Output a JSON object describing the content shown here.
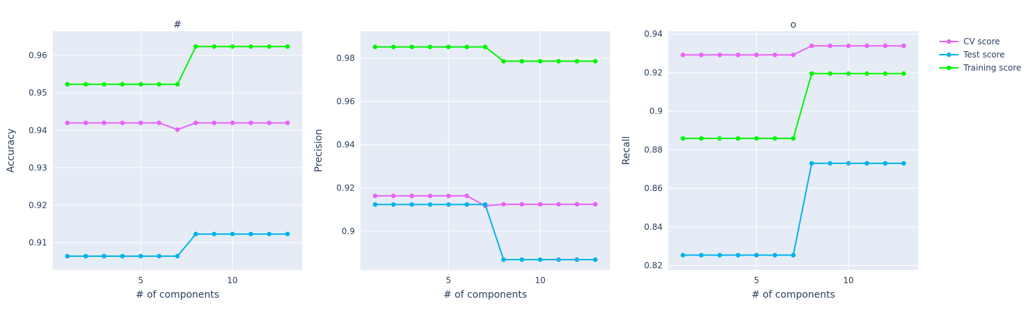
{
  "chart_data": [
    {
      "type": "line",
      "title": "#",
      "xlabel": "# of components",
      "ylabel": "Accuracy",
      "x": [
        1,
        2,
        3,
        4,
        5,
        6,
        7,
        8,
        9,
        10,
        11,
        12,
        13
      ],
      "xlim": [
        0.2,
        13.8
      ],
      "ylim": [
        0.9027,
        0.9665
      ],
      "xticks": [
        5,
        10
      ],
      "yticks": [
        0.91,
        0.92,
        0.93,
        0.94,
        0.95,
        0.96
      ],
      "ytick_labels": [
        "0.91",
        "0.92",
        "0.93",
        "0.94",
        "0.95",
        "0.96"
      ],
      "series": [
        {
          "name": "CV score",
          "values": [
            0.942,
            0.942,
            0.942,
            0.942,
            0.942,
            0.942,
            0.9402,
            0.942,
            0.942,
            0.942,
            0.942,
            0.942,
            0.942
          ]
        },
        {
          "name": "Test score",
          "values": [
            0.9064,
            0.9064,
            0.9064,
            0.9064,
            0.9064,
            0.9064,
            0.9064,
            0.9123,
            0.9123,
            0.9123,
            0.9123,
            0.9123,
            0.9123
          ]
        },
        {
          "name": "Training score",
          "values": [
            0.9523,
            0.9523,
            0.9523,
            0.9523,
            0.9523,
            0.9523,
            0.9523,
            0.9624,
            0.9624,
            0.9624,
            0.9624,
            0.9624,
            0.9624
          ]
        }
      ]
    },
    {
      "type": "line",
      "title": "",
      "xlabel": "# of components",
      "ylabel": "Precision",
      "x": [
        1,
        2,
        3,
        4,
        5,
        6,
        7,
        8,
        9,
        10,
        11,
        12,
        13
      ],
      "xlim": [
        0.2,
        13.8
      ],
      "ylim": [
        0.882,
        0.9925
      ],
      "xticks": [
        5,
        10
      ],
      "yticks": [
        0.9,
        0.92,
        0.94,
        0.96,
        0.98
      ],
      "ytick_labels": [
        "0.9",
        "0.92",
        "0.94",
        "0.96",
        "0.98"
      ],
      "series": [
        {
          "name": "CV score",
          "values": [
            0.9163,
            0.9163,
            0.9163,
            0.9163,
            0.9163,
            0.9163,
            0.9117,
            0.9124,
            0.9124,
            0.9124,
            0.9124,
            0.9124,
            0.9124
          ]
        },
        {
          "name": "Test score",
          "values": [
            0.9123,
            0.9123,
            0.9123,
            0.9123,
            0.9123,
            0.9123,
            0.9123,
            0.8868,
            0.8868,
            0.8868,
            0.8868,
            0.8868,
            0.8868
          ]
        },
        {
          "name": "Training score",
          "values": [
            0.9852,
            0.9852,
            0.9852,
            0.9852,
            0.9852,
            0.9852,
            0.9852,
            0.9786,
            0.9786,
            0.9786,
            0.9786,
            0.9786,
            0.9786
          ]
        }
      ]
    },
    {
      "type": "line",
      "title": "o",
      "xlabel": "# of components",
      "ylabel": "Recall",
      "x": [
        1,
        2,
        3,
        4,
        5,
        6,
        7,
        8,
        9,
        10,
        11,
        12,
        13
      ],
      "xlim": [
        0.2,
        13.8
      ],
      "ylim": [
        0.8177,
        0.9415
      ],
      "xticks": [
        5,
        10
      ],
      "yticks": [
        0.82,
        0.84,
        0.86,
        0.88,
        0.9,
        0.92,
        0.94
      ],
      "ytick_labels": [
        "0.82",
        "0.84",
        "0.86",
        "0.88",
        "0.9",
        "0.92",
        "0.94"
      ],
      "series": [
        {
          "name": "CV score",
          "values": [
            0.9292,
            0.9292,
            0.9292,
            0.9292,
            0.9292,
            0.9292,
            0.9292,
            0.9339,
            0.9339,
            0.9339,
            0.9339,
            0.9339,
            0.9339
          ]
        },
        {
          "name": "Test score",
          "values": [
            0.8254,
            0.8254,
            0.8254,
            0.8254,
            0.8254,
            0.8254,
            0.8254,
            0.873,
            0.873,
            0.873,
            0.873,
            0.873,
            0.873
          ]
        },
        {
          "name": "Training score",
          "values": [
            0.8859,
            0.8859,
            0.8859,
            0.8859,
            0.8859,
            0.8859,
            0.8859,
            0.9195,
            0.9195,
            0.9195,
            0.9195,
            0.9195,
            0.9195
          ]
        }
      ]
    }
  ],
  "legend": {
    "placement": "top-right",
    "items": [
      "CV score",
      "Test score",
      "Training score"
    ]
  },
  "colors": {
    "CV score": "#e763fa",
    "Test score": "#00b2e8",
    "Training score": "#00f500",
    "plot_background": "#e5ecf6",
    "gridline": "#ffffff",
    "text": "#2a3f5f"
  }
}
